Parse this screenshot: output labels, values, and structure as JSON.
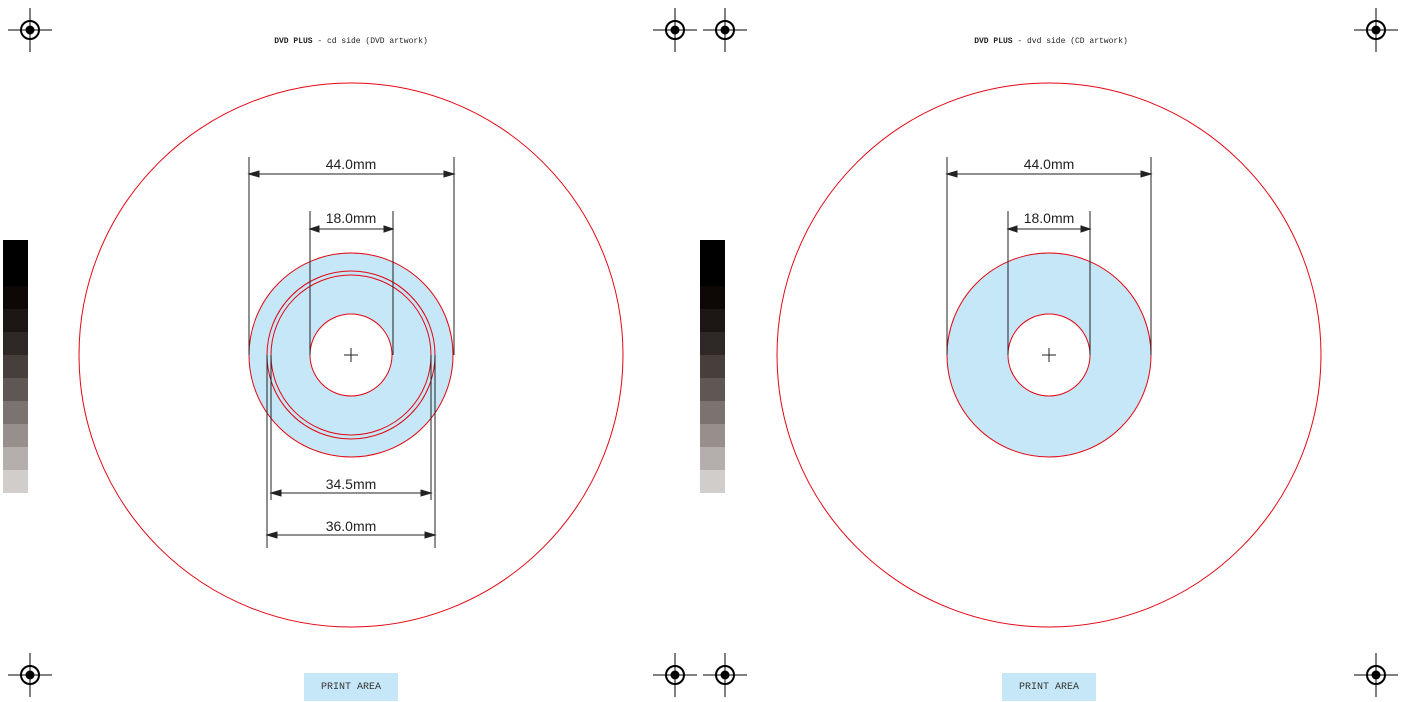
{
  "panels": [
    {
      "title_strong": "DVD PLUS",
      "title_rest": " - cd side (DVD artwork)",
      "dimensions": [
        "44.0mm",
        "18.0mm",
        "34.5mm",
        "36.0mm"
      ],
      "print_area": "PRINT AREA"
    },
    {
      "title_strong": "DVD PLUS",
      "title_rest": " - dvd side (CD artwork)",
      "dimensions": [
        "44.0mm",
        "18.0mm"
      ],
      "print_area": "PRINT AREA"
    }
  ],
  "colors": {
    "outline": "#e30613",
    "print_fill": "#c6e7f7",
    "dim_line": "#222222"
  },
  "grey_scale": [
    "#000000",
    "#0d0805",
    "#1c1714",
    "#2e2927",
    "#463f3c",
    "#5e5754",
    "#7a7370",
    "#978f8c",
    "#b4aeac",
    "#d1cdcb"
  ]
}
